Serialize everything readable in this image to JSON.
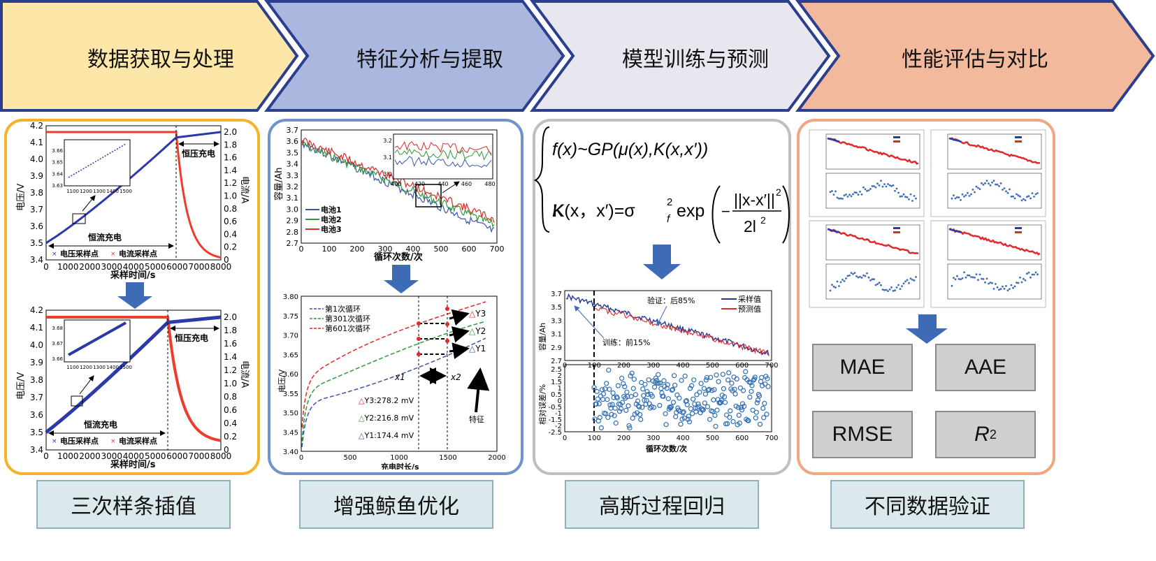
{
  "stages": [
    {
      "label": "数据获取与处理"
    },
    {
      "label": "特征分析与提取"
    },
    {
      "label": "模型训练与预测"
    },
    {
      "label": "性能评估与对比"
    }
  ],
  "colors": {
    "stage1": "#fce7a8",
    "stage2": "#aab8e0",
    "stage3": "#e8e6ee",
    "stage4": "#f3b99c",
    "arrow_outline": "#2c3f8f",
    "panel1_border": "#f5b32a",
    "panel2_border": "#6e94c9",
    "panel3_border": "#bfbfbf",
    "panel4_border": "#f0a67e",
    "blue_arrow": "#3d6bb5",
    "voltage": "#2b3aa8",
    "current": "#ef3b2c"
  },
  "panel1": {
    "top_chart": {
      "type": "line",
      "ylabel": "电压/V",
      "y2label": "电流/A",
      "xlabel": "采样时间/s",
      "yticks": [
        "3.4",
        "3.5",
        "3.6",
        "3.7",
        "3.8",
        "3.9",
        "4.0",
        "4.1",
        "4.2"
      ],
      "y2ticks": [
        "0",
        "0.2",
        "0.4",
        "0.6",
        "0.8",
        "1.0",
        "1.2",
        "1.4",
        "1.6",
        "1.8",
        "2.0"
      ],
      "xticks": [
        "0",
        "1000",
        "2000",
        "3000",
        "4000",
        "5000",
        "6000",
        "7000",
        "8000"
      ],
      "cc_label": "恒流充电",
      "cv_label": "恒压充电",
      "legend": [
        "电压采样点",
        "电流采样点"
      ],
      "inset_yticks": [
        "3.66",
        "3.65",
        "3.64",
        "3.63"
      ],
      "inset_xticks": [
        "1100",
        "1200",
        "1300",
        "1400",
        "1500"
      ]
    },
    "bottom_chart": {
      "type": "line",
      "ylabel": "电压/V",
      "y2label": "电流/A",
      "xlabel": "采样时间/s",
      "yticks": [
        "3.4",
        "3.5",
        "3.6",
        "3.7",
        "3.8",
        "3.9",
        "4.0",
        "4.1",
        "4.2"
      ],
      "y2ticks": [
        "0",
        "0.2",
        "0.4",
        "0.6",
        "0.8",
        "1.0",
        "1.2",
        "1.4",
        "1.6",
        "1.8",
        "2.0"
      ],
      "xticks": [
        "0",
        "1000",
        "2000",
        "3000",
        "4000",
        "5000",
        "6000",
        "7000",
        "8000"
      ],
      "cc_label": "恒流充电",
      "cv_label": "恒压充电",
      "legend": [
        "电压采样点",
        "电流采样点"
      ],
      "inset_yticks": [
        "3.68",
        "3.67",
        "3.66"
      ],
      "inset_xticks": [
        "1100",
        "1200",
        "1300",
        "1400",
        "1500"
      ]
    }
  },
  "panel2": {
    "top_chart": {
      "type": "line",
      "ylabel": "容量/Ah",
      "xlabel": "循环次数/次",
      "yticks": [
        "2.7",
        "2.8",
        "2.9",
        "3.0",
        "3.1",
        "3.2",
        "3.3",
        "3.4",
        "3.5",
        "3.6",
        "3.7"
      ],
      "xticks": [
        "0",
        "100",
        "200",
        "300",
        "400",
        "500",
        "600",
        "700"
      ],
      "legend": [
        "电池1",
        "电池2",
        "电池3"
      ],
      "inset_yticks": [
        "3.2",
        "3.1",
        "3.0"
      ],
      "inset_xticks": [
        "400",
        "420",
        "440",
        "460",
        "480"
      ]
    },
    "bottom_chart": {
      "type": "line",
      "ylabel": "电压/V",
      "xlabel": "充电时长/s",
      "yticks": [
        "3.40",
        "3.45",
        "3.50",
        "3.55",
        "3.60",
        "3.65",
        "3.70",
        "3.75",
        "3.80"
      ],
      "xticks": [
        "0",
        "500",
        "1000",
        "1500",
        "2000"
      ],
      "legend": [
        "第1次循环",
        "第301次循环",
        "第601次循环"
      ],
      "markers": [
        "Y3",
        "Y2",
        "Y1"
      ],
      "x_markers": [
        "x1",
        "x2"
      ],
      "values": [
        "Y3:278.2 mV",
        "Y2:216.8 mV",
        "Y1:174.4 mV"
      ],
      "feature_label": "特征"
    }
  },
  "panel3": {
    "formula1": {
      "f": "f",
      "lp": "(",
      "x": "x",
      ",": ")",
      "tilde": "~",
      "GP": "GP",
      "mu": "μ",
      "K": "K",
      "xp": "x′"
    },
    "formula_parts": {
      "line1": "f(x)~GP(μ(x),K(x,x′))",
      "line2_left": "K(x，x′)=σ",
      "sub_f": "f",
      "sup_2": "2",
      "exp": "exp",
      "minus": "−",
      "num": "||x-x′||",
      "num_sup": "2",
      "den": "2l",
      "den_sup": "2"
    },
    "top_chart": {
      "type": "line",
      "ylabel": "容量/Ah",
      "yticks": [
        "2.7",
        "2.9",
        "3.1",
        "3.3",
        "3.5",
        "3.7"
      ],
      "xticks": [
        "0",
        "100",
        "200",
        "300",
        "400",
        "500",
        "600",
        "700"
      ],
      "legend": [
        "采样值",
        "预测值"
      ],
      "annot_verify": "验证：后85%",
      "annot_train": "训练：前15%"
    },
    "bottom_chart": {
      "type": "scatter",
      "ylabel": "相对误差/%",
      "xlabel": "循环次数/次",
      "yticks": [
        "2.5",
        "2",
        "1.5",
        "1",
        "0.5",
        "0",
        "-0.5",
        "-1",
        "-1.5",
        "-2",
        "-2.5"
      ],
      "xticks": [
        "0",
        "100",
        "200",
        "300",
        "400",
        "500",
        "600",
        "700"
      ]
    }
  },
  "panel4": {
    "metrics": [
      {
        "label": "MAE"
      },
      {
        "label": "AAE"
      },
      {
        "label": "RMSE"
      },
      {
        "label": "R",
        "sup": "2"
      }
    ]
  },
  "methods": [
    {
      "label": "三次样条插值"
    },
    {
      "label": "增强鲸鱼优化"
    },
    {
      "label": "高斯过程回归"
    },
    {
      "label": "不同数据验证"
    }
  ]
}
